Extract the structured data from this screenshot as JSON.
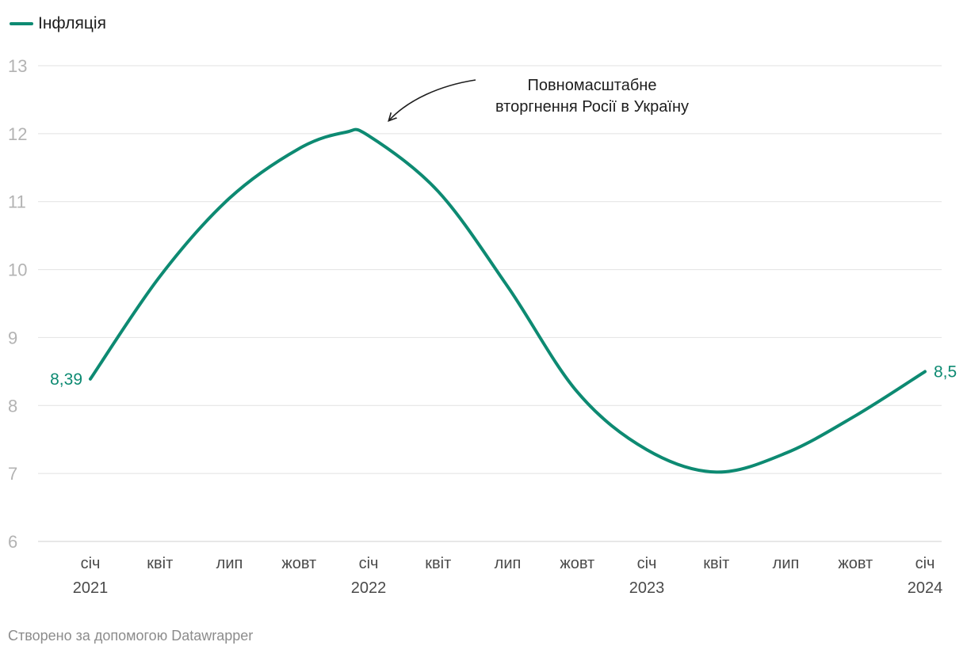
{
  "legend": {
    "label": "Інфляція"
  },
  "footer": {
    "credit": "Створено за допомогою Datawrapper"
  },
  "colors": {
    "series": "#0d8a72",
    "grid": "#e2e2e2",
    "axis_text": "#b3b3b3",
    "tick_text": "#4a4a4a",
    "annotation_text": "#1d1d1d"
  },
  "chart_data": {
    "type": "line",
    "title": "",
    "xlabel": "",
    "ylabel": "",
    "ylim": [
      6,
      13
    ],
    "yticks": [
      "6",
      "7",
      "8",
      "9",
      "10",
      "11",
      "12",
      "13"
    ],
    "grid": true,
    "legend_position": "top-left",
    "xticks": [
      {
        "x": "2021-01",
        "label": "січ",
        "year": "2021"
      },
      {
        "x": "2021-04",
        "label": "квіт",
        "year": ""
      },
      {
        "x": "2021-07",
        "label": "лип",
        "year": ""
      },
      {
        "x": "2021-10",
        "label": "жовт",
        "year": ""
      },
      {
        "x": "2022-01",
        "label": "січ",
        "year": "2022"
      },
      {
        "x": "2022-04",
        "label": "квіт",
        "year": ""
      },
      {
        "x": "2022-07",
        "label": "лип",
        "year": ""
      },
      {
        "x": "2022-10",
        "label": "жовт",
        "year": ""
      },
      {
        "x": "2023-01",
        "label": "січ",
        "year": "2023"
      },
      {
        "x": "2023-04",
        "label": "квіт",
        "year": ""
      },
      {
        "x": "2023-07",
        "label": "лип",
        "year": ""
      },
      {
        "x": "2023-10",
        "label": "жовт",
        "year": ""
      },
      {
        "x": "2024-01",
        "label": "січ",
        "year": "2024"
      }
    ],
    "series": [
      {
        "name": "Інфляція",
        "points": [
          {
            "x": "2021-01",
            "y": 8.39
          },
          {
            "x": "2021-04",
            "y": 9.9
          },
          {
            "x": "2021-07",
            "y": 11.05
          },
          {
            "x": "2021-10",
            "y": 11.78
          },
          {
            "x": "2021-12",
            "y": 12.02
          },
          {
            "x": "2022-01",
            "y": 11.97
          },
          {
            "x": "2022-04",
            "y": 11.15
          },
          {
            "x": "2022-07",
            "y": 9.75
          },
          {
            "x": "2022-10",
            "y": 8.2
          },
          {
            "x": "2023-01",
            "y": 7.35
          },
          {
            "x": "2023-04",
            "y": 7.02
          },
          {
            "x": "2023-07",
            "y": 7.3
          },
          {
            "x": "2023-10",
            "y": 7.85
          },
          {
            "x": "2024-01",
            "y": 8.5
          }
        ]
      }
    ],
    "value_labels": [
      {
        "x": "2021-01",
        "text": "8,39",
        "side": "left"
      },
      {
        "x": "2024-01",
        "text": "8,5",
        "side": "right"
      }
    ],
    "annotations": [
      {
        "lines": [
          "Повномасштабне",
          "вторгнення Росії в Україну"
        ],
        "target_x": "2022-02"
      }
    ]
  }
}
